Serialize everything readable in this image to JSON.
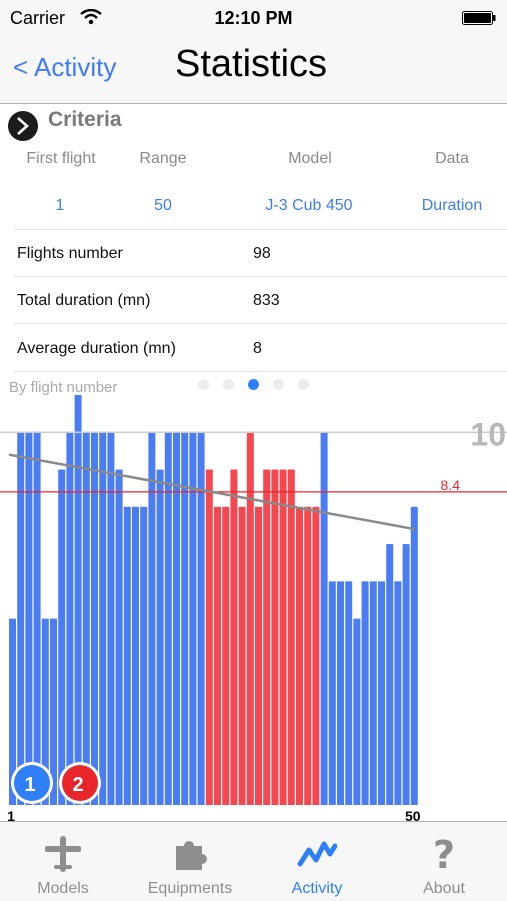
{
  "status_bar": {
    "carrier": "Carrier",
    "time": "12:10 PM"
  },
  "nav": {
    "back_label": "< Activity",
    "title": "Statistics"
  },
  "criteria": {
    "title": "Criteria",
    "headers": {
      "first_flight": "First flight",
      "range": "Range",
      "model": "Model",
      "data": "Data"
    },
    "values": {
      "first_flight": "1",
      "range": "50",
      "model": "J-3 Cub 450",
      "data": "Duration"
    }
  },
  "stats": [
    {
      "label": "Flights number",
      "value": "98"
    },
    {
      "label": "Total duration (mn)",
      "value": "833"
    },
    {
      "label": "Average duration (mn)",
      "value": "8"
    }
  ],
  "chart_subtitle": "By flight number",
  "page_dots": {
    "count": 5,
    "active_index": 2
  },
  "chart_data": {
    "type": "bar",
    "x": [
      1,
      2,
      3,
      4,
      5,
      6,
      7,
      8,
      9,
      10,
      11,
      12,
      13,
      14,
      15,
      16,
      17,
      18,
      19,
      20,
      21,
      22,
      23,
      24,
      25,
      26,
      27,
      28,
      29,
      30,
      31,
      32,
      33,
      34,
      35,
      36,
      37,
      38,
      39,
      40,
      41,
      42,
      43,
      44,
      45,
      46,
      47,
      48,
      49,
      50
    ],
    "values": [
      5,
      10,
      10,
      10,
      5,
      5,
      9,
      10,
      11,
      10,
      10,
      10,
      10,
      9,
      8,
      8,
      8,
      10,
      9,
      10,
      10,
      10,
      10,
      10,
      9,
      8,
      8,
      9,
      8,
      10,
      8,
      9,
      9,
      9,
      9,
      8,
      8,
      8,
      10,
      6,
      6,
      6,
      5,
      6,
      6,
      6,
      7,
      6,
      7,
      8
    ],
    "bar_colors": [
      "#4a7cf2",
      "#4a7cf2",
      "#4a7cf2",
      "#4a7cf2",
      "#4a7cf2",
      "#4a7cf2",
      "#4a7cf2",
      "#4a7cf2",
      "#4a7cf2",
      "#4a7cf2",
      "#4a7cf2",
      "#4a7cf2",
      "#4a7cf2",
      "#4a7cf2",
      "#4a7cf2",
      "#4a7cf2",
      "#4a7cf2",
      "#4a7cf2",
      "#4a7cf2",
      "#4a7cf2",
      "#4a7cf2",
      "#4a7cf2",
      "#4a7cf2",
      "#4a7cf2",
      "#f5474f",
      "#f5474f",
      "#f5474f",
      "#f5474f",
      "#f5474f",
      "#f5474f",
      "#f5474f",
      "#f5474f",
      "#f5474f",
      "#f5474f",
      "#f5474f",
      "#f5474f",
      "#f5474f",
      "#f5474f",
      "#4a7cf2",
      "#4a7cf2",
      "#4a7cf2",
      "#4a7cf2",
      "#4a7cf2",
      "#4a7cf2",
      "#4a7cf2",
      "#4a7cf2",
      "#4a7cf2",
      "#4a7cf2",
      "#4a7cf2",
      "#4a7cf2"
    ],
    "ylim": [
      0,
      11
    ],
    "max_line": {
      "value": 10,
      "label": "10",
      "color": "#cccccc"
    },
    "average_line": {
      "value": 8.4,
      "label": "8.4",
      "color": "#e8252b"
    },
    "trend_line": {
      "start": 9.4,
      "end": 7.4,
      "color": "#8a8a8a"
    },
    "x_tick_labels": {
      "start": "1",
      "end": "50"
    },
    "markers": [
      {
        "label": "1",
        "color": "#2f7ff7"
      },
      {
        "label": "2",
        "color": "#e8252b"
      }
    ]
  },
  "tabs": [
    {
      "label": "Models",
      "icon": "airplane-icon",
      "selected": false
    },
    {
      "label": "Equipments",
      "icon": "puzzle-icon",
      "selected": false
    },
    {
      "label": "Activity",
      "icon": "activity-icon",
      "selected": true
    },
    {
      "label": "About",
      "icon": "question-icon",
      "selected": false
    }
  ]
}
